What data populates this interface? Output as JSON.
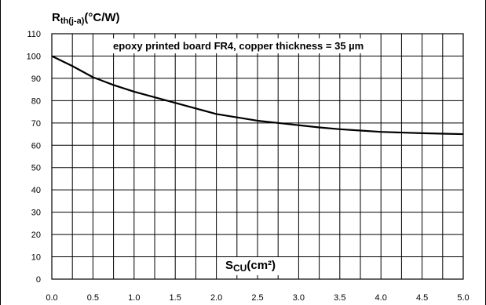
{
  "chart_data": {
    "type": "line",
    "ylabel": {
      "main": "R",
      "sub": "th(j-a)",
      "unit": "(°C/W)"
    },
    "xlabel": {
      "main": "S",
      "sub": "CU",
      "unit": "(cm²)"
    },
    "annotation": "epoxy printed board FR4, copper thickness = 35 µm",
    "xlim": [
      0,
      5
    ],
    "ylim": [
      0,
      110
    ],
    "x_ticks": [
      "0.0",
      "0.5",
      "1.0",
      "1.5",
      "2.0",
      "2.5",
      "3.0",
      "3.5",
      "4.0",
      "4.5",
      "5.0"
    ],
    "y_ticks": [
      "0",
      "10",
      "20",
      "30",
      "40",
      "50",
      "60",
      "70",
      "80",
      "90",
      "100",
      "110"
    ],
    "grid": true,
    "series": [
      {
        "x": [
          0.0,
          0.25,
          0.5,
          0.75,
          1.0,
          1.25,
          1.5,
          1.75,
          2.0,
          2.25,
          2.5,
          2.75,
          3.0,
          3.25,
          3.5,
          3.75,
          4.0,
          4.25,
          4.5,
          4.75,
          5.0
        ],
        "y": [
          100,
          95.5,
          90.5,
          87,
          84,
          81.5,
          79,
          76.5,
          74,
          72.5,
          71,
          70,
          69,
          68,
          67.2,
          66.6,
          66,
          65.7,
          65.4,
          65.2,
          65
        ]
      }
    ]
  }
}
